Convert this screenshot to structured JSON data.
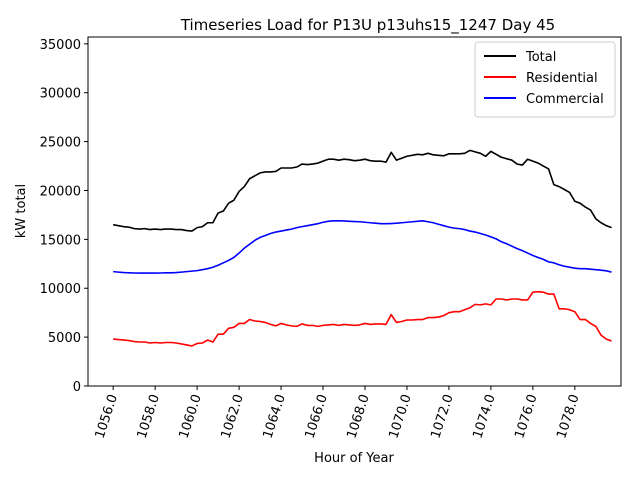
{
  "chart_data": {
    "type": "line",
    "title": "Timeseries Load for P13U p13uhs15_1247  Day 45",
    "xlabel": "Hour of Year",
    "ylabel": "kW total",
    "xlim": [
      1054.8,
      1080.2
    ],
    "ylim": [
      0,
      35700
    ],
    "x_ticks": [
      1056,
      1058,
      1060,
      1062,
      1064,
      1066,
      1068,
      1070,
      1072,
      1074,
      1076,
      1078
    ],
    "x_tick_labels": [
      "1056.0",
      "1058.0",
      "1060.0",
      "1062.0",
      "1064.0",
      "1066.0",
      "1068.0",
      "1070.0",
      "1072.0",
      "1074.0",
      "1076.0",
      "1078.0"
    ],
    "y_ticks": [
      0,
      5000,
      10000,
      15000,
      20000,
      25000,
      30000,
      35000
    ],
    "y_tick_labels": [
      "0",
      "5000",
      "10000",
      "15000",
      "20000",
      "25000",
      "30000",
      "35000"
    ],
    "legend_position": "top-right",
    "grid": false,
    "x": [
      1056.0,
      1056.25,
      1056.5,
      1056.75,
      1057.0,
      1057.25,
      1057.5,
      1057.75,
      1058.0,
      1058.25,
      1058.5,
      1058.75,
      1059.0,
      1059.25,
      1059.5,
      1059.75,
      1060.0,
      1060.25,
      1060.5,
      1060.75,
      1061.0,
      1061.25,
      1061.5,
      1061.75,
      1062.0,
      1062.25,
      1062.5,
      1062.75,
      1063.0,
      1063.25,
      1063.5,
      1063.75,
      1064.0,
      1064.25,
      1064.5,
      1064.75,
      1065.0,
      1065.25,
      1065.5,
      1065.75,
      1066.0,
      1066.25,
      1066.5,
      1066.75,
      1067.0,
      1067.25,
      1067.5,
      1067.75,
      1068.0,
      1068.25,
      1068.5,
      1068.75,
      1069.0,
      1069.25,
      1069.5,
      1069.75,
      1070.0,
      1070.25,
      1070.5,
      1070.75,
      1071.0,
      1071.25,
      1071.5,
      1071.75,
      1072.0,
      1072.25,
      1072.5,
      1072.75,
      1073.0,
      1073.25,
      1073.5,
      1073.75,
      1074.0,
      1074.25,
      1074.5,
      1074.75,
      1075.0,
      1075.25,
      1075.5,
      1075.75,
      1076.0,
      1076.25,
      1076.5,
      1076.75,
      1077.0,
      1077.25,
      1077.5,
      1077.75,
      1078.0,
      1078.25,
      1078.5,
      1078.75,
      1079.0,
      1079.25,
      1079.5,
      1079.75
    ],
    "series": [
      {
        "name": "Total",
        "color": "#000000",
        "values": [
          16500,
          16400,
          16300,
          16250,
          16100,
          16050,
          16100,
          16000,
          16050,
          16000,
          16050,
          16050,
          16000,
          16000,
          15900,
          15850,
          16200,
          16300,
          16700,
          16700,
          17700,
          17900,
          18700,
          19000,
          19900,
          20400,
          21200,
          21500,
          21800,
          21900,
          21900,
          21950,
          22300,
          22300,
          22300,
          22400,
          22700,
          22650,
          22700,
          22800,
          23000,
          23200,
          23200,
          23100,
          23200,
          23150,
          23050,
          23100,
          23200,
          23050,
          23000,
          23000,
          22900,
          23900,
          23100,
          23300,
          23500,
          23600,
          23700,
          23650,
          23800,
          23650,
          23600,
          23550,
          23750,
          23750,
          23750,
          23800,
          24100,
          23950,
          23800,
          23500,
          24000,
          23700,
          23400,
          23250,
          23100,
          22700,
          22600,
          23200,
          23000,
          22800,
          22500,
          22200,
          20600,
          20400,
          20100,
          19800,
          18900,
          18700,
          18300,
          18000,
          17100,
          16700,
          16400,
          16200
        ]
      },
      {
        "name": "Residential",
        "color": "#ff0000",
        "values": [
          4800,
          4750,
          4700,
          4650,
          4550,
          4500,
          4500,
          4400,
          4450,
          4400,
          4450,
          4450,
          4400,
          4300,
          4200,
          4100,
          4350,
          4400,
          4700,
          4500,
          5300,
          5300,
          5900,
          6000,
          6400,
          6400,
          6800,
          6650,
          6600,
          6500,
          6300,
          6150,
          6400,
          6250,
          6150,
          6100,
          6350,
          6200,
          6200,
          6100,
          6200,
          6250,
          6300,
          6200,
          6300,
          6250,
          6200,
          6250,
          6400,
          6300,
          6350,
          6350,
          6300,
          7300,
          6500,
          6600,
          6750,
          6750,
          6800,
          6800,
          7000,
          7000,
          7050,
          7200,
          7500,
          7600,
          7600,
          7800,
          8000,
          8350,
          8300,
          8400,
          8300,
          8900,
          8900,
          8800,
          8900,
          8900,
          8800,
          8800,
          9600,
          9650,
          9600,
          9400,
          9400,
          7900,
          7900,
          7800,
          7600,
          6800,
          6800,
          6400,
          6100,
          5200,
          4800,
          4600
        ]
      },
      {
        "name": "Commercial",
        "color": "#0000ff",
        "values": [
          11700,
          11650,
          11600,
          11580,
          11560,
          11550,
          11550,
          11550,
          11550,
          11560,
          11580,
          11580,
          11600,
          11650,
          11700,
          11750,
          11800,
          11900,
          12000,
          12150,
          12350,
          12600,
          12850,
          13150,
          13600,
          14100,
          14500,
          14900,
          15200,
          15400,
          15600,
          15750,
          15850,
          15950,
          16050,
          16200,
          16300,
          16400,
          16500,
          16600,
          16750,
          16850,
          16900,
          16900,
          16880,
          16850,
          16820,
          16800,
          16750,
          16700,
          16650,
          16600,
          16600,
          16620,
          16650,
          16700,
          16750,
          16800,
          16850,
          16900,
          16800,
          16700,
          16550,
          16400,
          16250,
          16150,
          16100,
          16000,
          15850,
          15750,
          15600,
          15450,
          15250,
          15050,
          14750,
          14550,
          14300,
          14050,
          13850,
          13600,
          13350,
          13150,
          12950,
          12700,
          12600,
          12400,
          12250,
          12150,
          12050,
          12000,
          12000,
          11950,
          11900,
          11850,
          11780,
          11650
        ]
      }
    ]
  }
}
